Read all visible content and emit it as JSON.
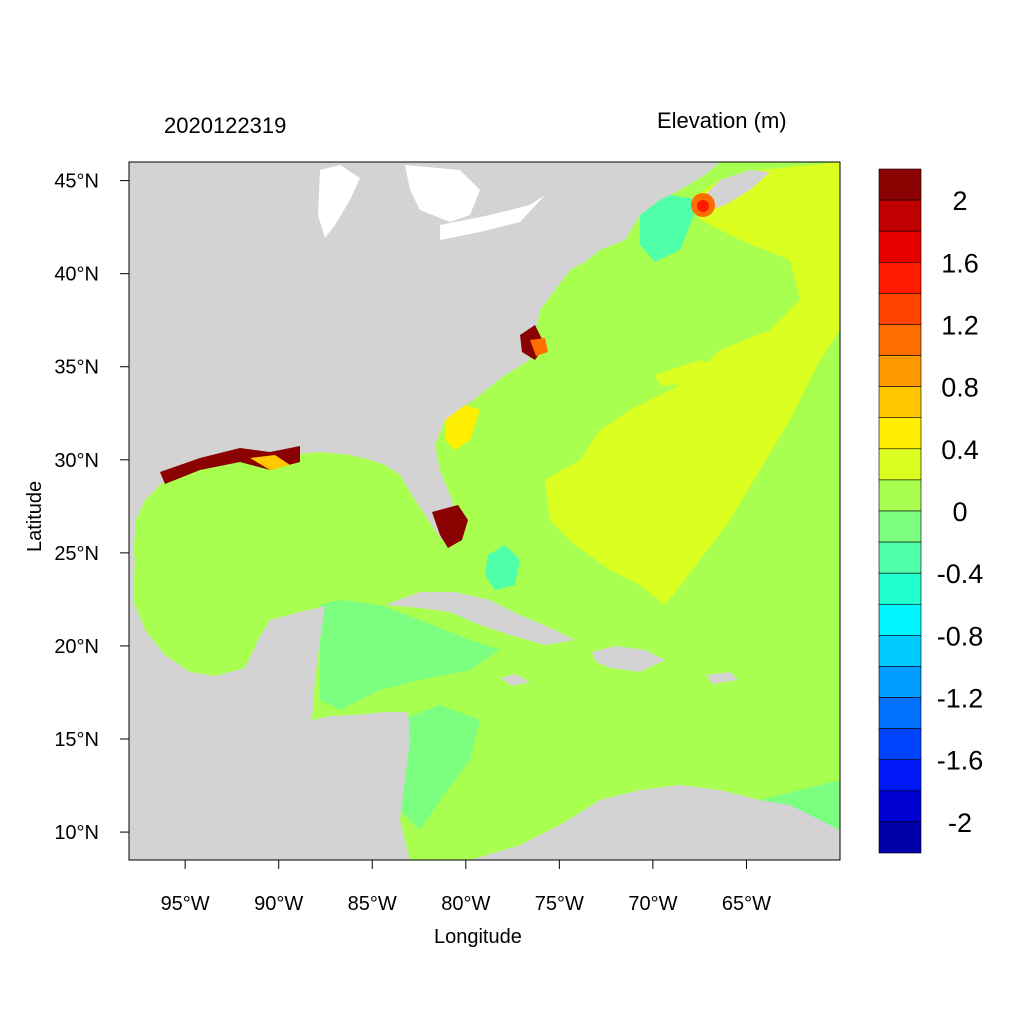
{
  "title_left": "2020122319",
  "title_right": "Elevation (m)",
  "x_axis_title": "Longitude",
  "y_axis_title": "Latitude",
  "lon_ticks": [
    "95°W",
    "90°W",
    "85°W",
    "80°W",
    "75°W",
    "70°W",
    "65°W"
  ],
  "lat_ticks": [
    "45°N",
    "40°N",
    "35°N",
    "30°N",
    "25°N",
    "20°N",
    "15°N",
    "10°N"
  ],
  "lon_values": [
    -95,
    -90,
    -85,
    -80,
    -75,
    -70,
    -65
  ],
  "lat_values": [
    45,
    40,
    35,
    30,
    25,
    20,
    15,
    10
  ],
  "lon_range": [
    -98,
    -60
  ],
  "lat_range": [
    8.5,
    46
  ],
  "colorbar": {
    "labels": [
      "2",
      "1.6",
      "1.2",
      "0.8",
      "0.4",
      "0",
      "-0.4",
      "-0.8",
      "-1.2",
      "-1.6",
      "-2"
    ],
    "colors": [
      "#8b0000",
      "#c00000",
      "#e60000",
      "#ff1a00",
      "#ff4400",
      "#ff6e00",
      "#ff9900",
      "#ffc800",
      "#ffee00",
      "#dcff22",
      "#a8ff50",
      "#7cff80",
      "#50ffaa",
      "#22ffd0",
      "#00f5ff",
      "#00ccff",
      "#009cff",
      "#0070ff",
      "#0044ff",
      "#0018f5",
      "#0000d0",
      "#0000a8"
    ]
  },
  "colors": {
    "land": "#d3d3d3",
    "ocean_base": "#a8ff50",
    "atlantic_high": "#dcff22",
    "caribbean_low": "#7cff80",
    "surge_high": "#8b0000"
  }
}
